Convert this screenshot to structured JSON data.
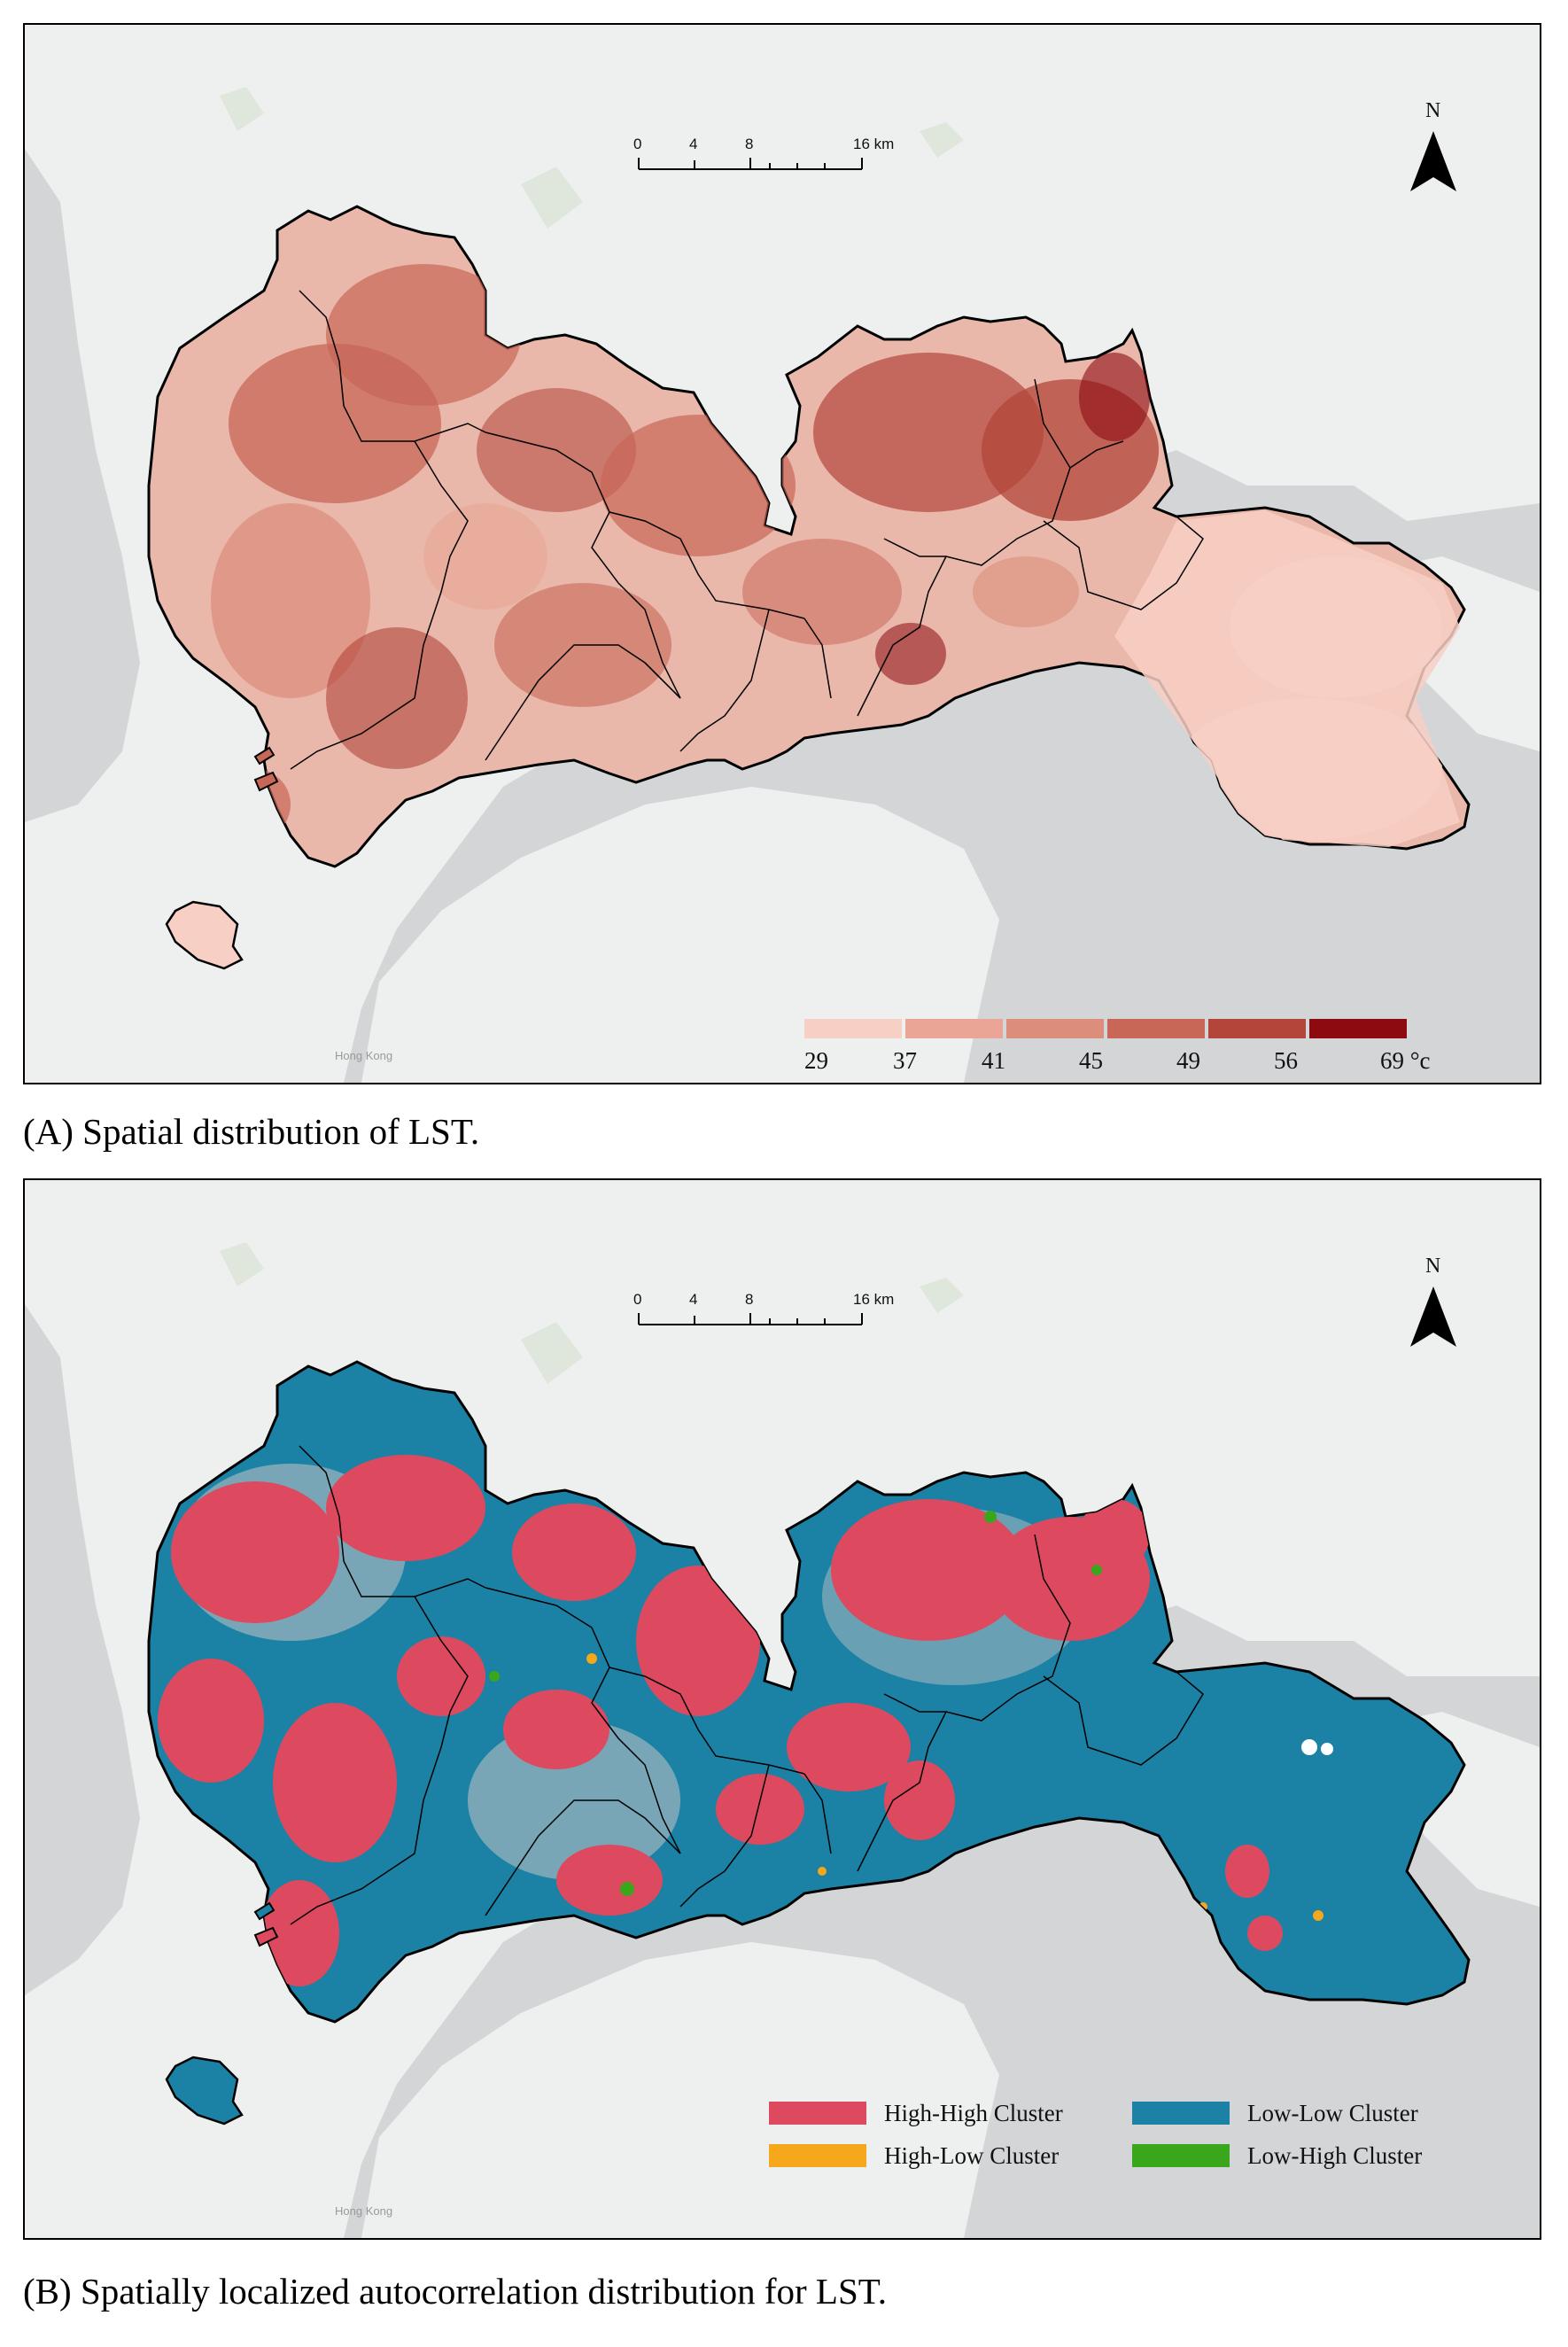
{
  "panel_a": {
    "caption": "(A) Spatial distribution of LST.",
    "scalebar": {
      "ticks": [
        "0",
        "4",
        "8",
        "16 km"
      ]
    },
    "north_arrow": {
      "label": "N"
    },
    "background_label": "Hong Kong",
    "legend": {
      "colors": [
        "#f8cfc4",
        "#eaa596",
        "#dc8d7c",
        "#c86757",
        "#b3453a",
        "#8c0a10"
      ],
      "ticks": [
        "29",
        "37",
        "41",
        "45",
        "49",
        "56",
        "69 °c"
      ]
    }
  },
  "panel_b": {
    "caption": "(B) Spatially localized autocorrelation distribution for LST.",
    "scalebar": {
      "ticks": [
        "0",
        "4",
        "8",
        "16 km"
      ]
    },
    "north_arrow": {
      "label": "N"
    },
    "background_label": "Hong Kong",
    "legend": [
      {
        "label": "High-High Cluster",
        "color": "#dd4a5f"
      },
      {
        "label": "Low-Low Cluster",
        "color": "#1b82a5"
      },
      {
        "label": "High-Low Cluster",
        "color": "#f5a81c"
      },
      {
        "label": "Low-High Cluster",
        "color": "#3aa61b"
      }
    ]
  },
  "colors": {
    "sea": "#d3d5d7",
    "land": "#eeefef",
    "boundary": "#000000"
  }
}
